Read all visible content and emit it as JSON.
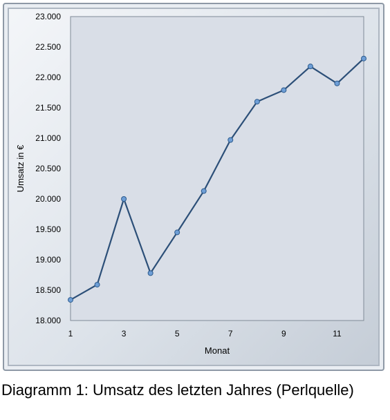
{
  "chart_data": {
    "type": "line",
    "xlabel": "Monat",
    "ylabel": "Umsatz in €",
    "x": [
      1,
      2,
      3,
      4,
      5,
      6,
      7,
      8,
      9,
      10,
      11,
      12
    ],
    "series": [
      {
        "values": [
          18340,
          18590,
          20000,
          18780,
          19450,
          20130,
          20970,
          21600,
          21790,
          22180,
          21900,
          22310
        ]
      }
    ],
    "xlim": [
      1,
      12
    ],
    "ylim": [
      18000,
      23000
    ],
    "x_ticks": [
      "1",
      "3",
      "5",
      "7",
      "9",
      "11"
    ],
    "y_ticks": [
      "18.000",
      "18.500",
      "19.000",
      "19.500",
      "20.000",
      "20.500",
      "21.000",
      "21.500",
      "22.000",
      "22.500",
      "23.000"
    ],
    "grid": false,
    "legend": "none",
    "colors": {
      "line": "#2c4f78",
      "marker_fill": "#6e9ed6",
      "marker_stroke": "#2c5a8c",
      "plot_background": "#d9dee7"
    }
  },
  "caption": "Diagramm 1: Umsatz des letzten Jahres (Perlquelle)"
}
